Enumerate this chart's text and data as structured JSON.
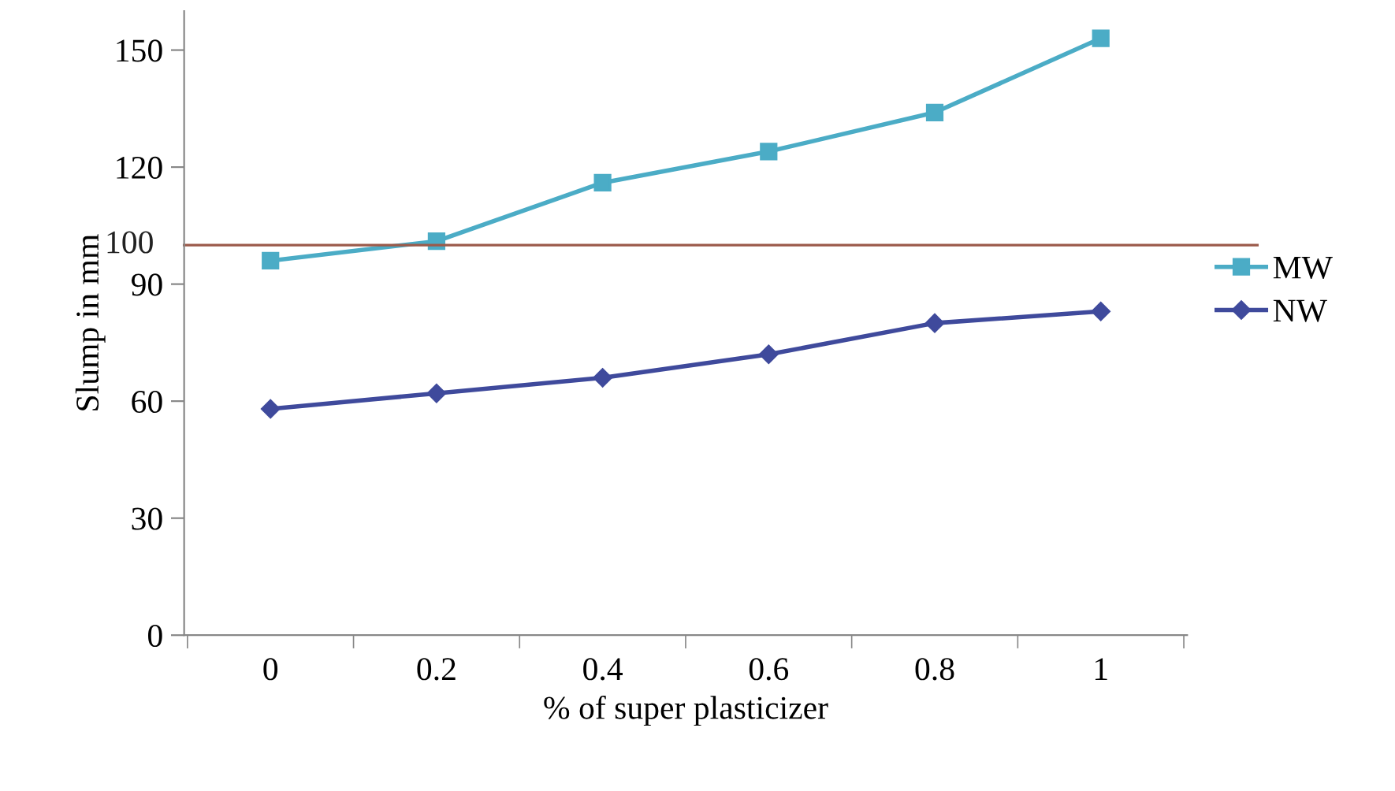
{
  "chart_data": {
    "type": "line",
    "xlabel": "% of super plasticizer",
    "ylabel": "Slump in mm",
    "categories": [
      "0",
      "0.2",
      "0.4",
      "0.6",
      "0.8",
      "1"
    ],
    "series": [
      {
        "name": "MW",
        "color": "#4bacc6",
        "marker": "square",
        "values": [
          96,
          101,
          116,
          124,
          134,
          153
        ]
      },
      {
        "name": "NW",
        "color": "#3f4a9c",
        "marker": "diamond",
        "values": [
          58,
          62,
          66,
          72,
          80,
          83
        ]
      }
    ],
    "ylim": [
      0,
      160
    ],
    "yticks": [
      0,
      30,
      60,
      90,
      120,
      150
    ],
    "ref_lines": [
      {
        "axis": "y",
        "value": 100,
        "label": "100",
        "color": "#9b5a4a"
      }
    ],
    "grid": false,
    "legend": "right"
  }
}
